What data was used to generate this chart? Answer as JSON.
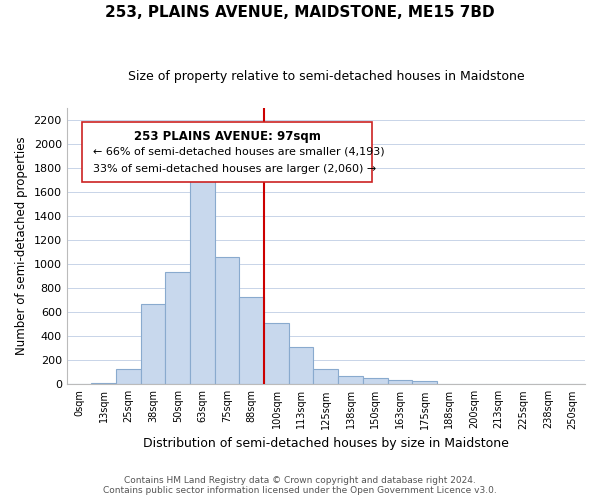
{
  "title": "253, PLAINS AVENUE, MAIDSTONE, ME15 7BD",
  "subtitle": "Size of property relative to semi-detached houses in Maidstone",
  "xlabel": "Distribution of semi-detached houses by size in Maidstone",
  "ylabel": "Number of semi-detached properties",
  "bar_labels": [
    "0sqm",
    "13sqm",
    "25sqm",
    "38sqm",
    "50sqm",
    "63sqm",
    "75sqm",
    "88sqm",
    "100sqm",
    "113sqm",
    "125sqm",
    "138sqm",
    "150sqm",
    "163sqm",
    "175sqm",
    "188sqm",
    "200sqm",
    "213sqm",
    "225sqm",
    "238sqm",
    "250sqm"
  ],
  "bar_values": [
    0,
    15,
    125,
    665,
    930,
    1730,
    1060,
    730,
    510,
    310,
    125,
    70,
    50,
    35,
    25,
    0,
    0,
    0,
    0,
    0,
    0
  ],
  "bar_color": "#c8d8ed",
  "bar_edge_color": "#89aace",
  "vline_x_index": 8,
  "vline_color": "#cc0000",
  "ylim": [
    0,
    2300
  ],
  "yticks": [
    0,
    200,
    400,
    600,
    800,
    1000,
    1200,
    1400,
    1600,
    1800,
    2000,
    2200
  ],
  "annotation_title": "253 PLAINS AVENUE: 97sqm",
  "annotation_line1": "← 66% of semi-detached houses are smaller (4,193)",
  "annotation_line2": "33% of semi-detached houses are larger (2,060) →",
  "footer_line1": "Contains HM Land Registry data © Crown copyright and database right 2024.",
  "footer_line2": "Contains public sector information licensed under the Open Government Licence v3.0.",
  "background_color": "#ffffff",
  "grid_color": "#c8d4e8",
  "title_fontsize": 11,
  "subtitle_fontsize": 9
}
